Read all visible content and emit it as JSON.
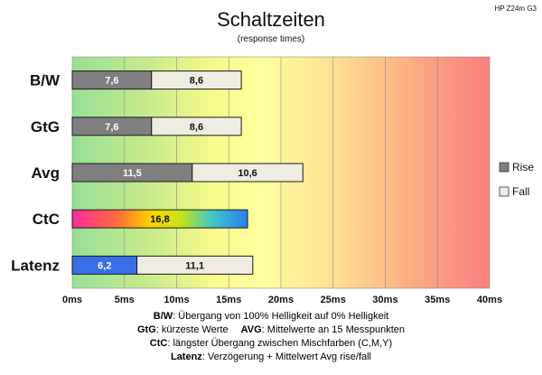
{
  "monitor": "HP Z24m G3",
  "chart_data": {
    "type": "bar",
    "orientation": "horizontal",
    "stacked": true,
    "title": "Schaltzeiten",
    "subtitle": "(response times)",
    "categories": [
      "B/W",
      "GtG",
      "Avg",
      "CtC",
      "Latenz"
    ],
    "series": [
      {
        "name": "Rise",
        "values": [
          7.6,
          7.6,
          11.5,
          null,
          6.2
        ],
        "labels": [
          "7,6",
          "7,6",
          "11,5",
          "",
          "6,2"
        ]
      },
      {
        "name": "Fall",
        "values": [
          8.6,
          8.6,
          10.6,
          null,
          11.1
        ],
        "labels": [
          "8,6",
          "8,6",
          "10,6",
          "",
          "11,1"
        ]
      },
      {
        "name": "CtC",
        "values": [
          null,
          null,
          null,
          16.8,
          null
        ],
        "labels": [
          "",
          "",
          "",
          "16,8",
          ""
        ]
      }
    ],
    "xlim": [
      0,
      40
    ],
    "xticks": [
      0,
      5,
      10,
      15,
      20,
      25,
      30,
      35,
      40
    ],
    "xtick_labels": [
      "0ms",
      "5ms",
      "10ms",
      "15ms",
      "20ms",
      "25ms",
      "30ms",
      "35ms",
      "40ms"
    ],
    "xlabel": "",
    "ylabel": "",
    "legend": [
      {
        "name": "Rise",
        "color": "#7f7f7f"
      },
      {
        "name": "Fall",
        "color": "#efede2"
      }
    ],
    "legend_position": "right",
    "grid": true,
    "colors": {
      "rise": "#7f7f7f",
      "fall": "#efede2",
      "latency": "#3a6ee6",
      "border": "#1a1a1a"
    }
  },
  "footnotes": {
    "bw": {
      "key": "B/W",
      "text": ":  Übergang von 100% Helligkeit auf 0% Helligkeit"
    },
    "gtg": {
      "key": "GtG",
      "text": ": kürzeste  Werte"
    },
    "avg": {
      "key": "AVG",
      "text": ": Mittelwerte  an 15 Messpunkten"
    },
    "ctc": {
      "key": "CtC",
      "text": ": längster Übergang  zwischen Mischfarben (C,M,Y)"
    },
    "latenz": {
      "key": "Latenz",
      "text": ": Verzögerung  + Mittelwert Avg rise/fall"
    }
  }
}
